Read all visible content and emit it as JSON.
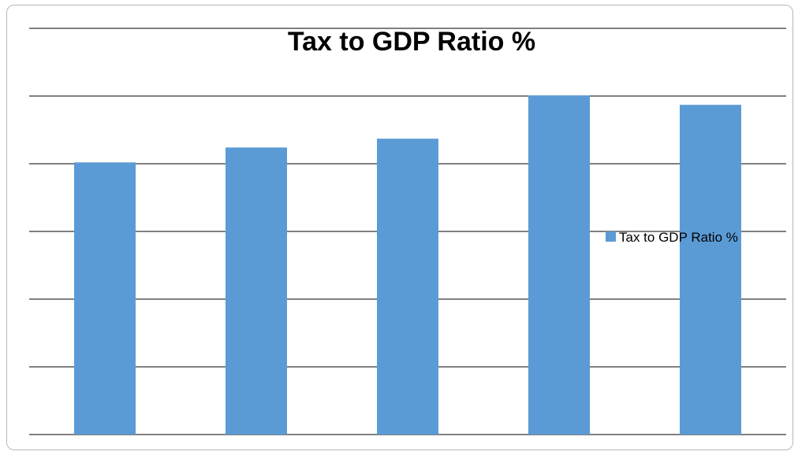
{
  "chart_data": {
    "type": "bar",
    "title": "Tax to GDP Ratio %",
    "xlabel": "",
    "ylabel": "",
    "categories": [
      "",
      "",
      "",
      "",
      ""
    ],
    "series": [
      {
        "name": "Tax to GDP Ratio %",
        "values": [
          4.02,
          4.24,
          4.37,
          5.01,
          4.87
        ]
      }
    ],
    "ylim": [
      0,
      6
    ],
    "grid": true,
    "legend": "right",
    "colors": {
      "bar": "#5b9bd5",
      "grid": "#000000"
    }
  }
}
